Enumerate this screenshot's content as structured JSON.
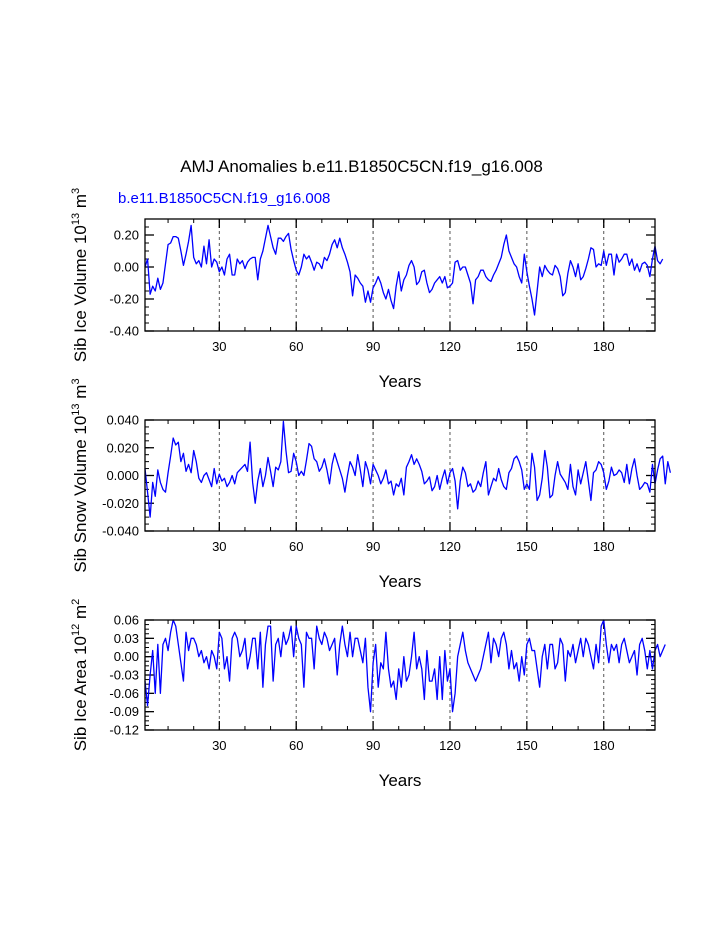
{
  "page": {
    "title": "AMJ Anomalies b.e11.B1850C5CN.f19_g16.008",
    "case_label": "b.e11.B1850C5CN.f19_g16.008"
  },
  "colors": {
    "series": "#0000ff",
    "axis": "#000000",
    "grid": "#555555",
    "case_label": "#0000ff"
  },
  "chart_data": [
    {
      "type": "line",
      "name": "ice-volume",
      "title": "",
      "xlabel": "Years",
      "ylabel_text": "Sib Ice Volume 10",
      "ylabel_exp": "13",
      "ylabel_unit": " m",
      "ylabel_unit_exp": "3",
      "xlim": [
        1,
        200
      ],
      "ylim": [
        -0.4,
        0.3
      ],
      "xticks": [
        30,
        60,
        90,
        120,
        150,
        180
      ],
      "xtick_labels": [
        "30",
        "60",
        "90",
        "120",
        "150",
        "180"
      ],
      "yticks": [
        -0.4,
        -0.2,
        0.0,
        0.2
      ],
      "ytick_labels": [
        "-0.40",
        "-0.20",
        "0.00",
        "0.20"
      ],
      "grid_x": true,
      "series": [
        {
          "name": "b.e11.B1850C5CN.f19_g16.008",
          "x_start": 1,
          "values": [
            0.0,
            0.05,
            -0.17,
            -0.12,
            -0.15,
            -0.07,
            -0.14,
            -0.1,
            0.02,
            0.14,
            0.15,
            0.19,
            0.19,
            0.18,
            0.1,
            0.01,
            0.08,
            0.16,
            0.26,
            0.06,
            0.02,
            0.04,
            0.0,
            0.13,
            0.02,
            0.17,
            0.0,
            0.05,
            0.03,
            -0.03,
            0.0,
            -0.05,
            0.05,
            0.08,
            -0.05,
            -0.05,
            0.05,
            0.02,
            0.04,
            -0.01,
            0.03,
            0.05,
            0.06,
            0.06,
            -0.08,
            0.05,
            0.1,
            0.18,
            0.26,
            0.19,
            0.12,
            0.08,
            0.18,
            0.18,
            0.16,
            0.19,
            0.21,
            0.11,
            0.04,
            -0.02,
            -0.05,
            0.0,
            0.08,
            0.05,
            0.07,
            0.03,
            -0.02,
            0.03,
            0.02,
            -0.01,
            0.06,
            0.04,
            0.08,
            0.14,
            0.17,
            0.12,
            0.18,
            0.12,
            0.08,
            0.03,
            -0.03,
            -0.18,
            -0.05,
            -0.07,
            -0.1,
            -0.12,
            -0.22,
            -0.15,
            -0.22,
            -0.13,
            -0.1,
            -0.06,
            -0.1,
            -0.16,
            -0.2,
            -0.14,
            -0.21,
            -0.26,
            -0.12,
            -0.03,
            -0.15,
            -0.08,
            -0.05,
            0.01,
            0.04,
            0.0,
            -0.11,
            -0.09,
            -0.03,
            -0.02,
            -0.1,
            -0.16,
            -0.14,
            -0.1,
            -0.08,
            -0.06,
            -0.1,
            -0.06,
            -0.13,
            -0.12,
            -0.1,
            0.03,
            0.04,
            -0.02,
            0.0,
            0.0,
            -0.05,
            -0.1,
            -0.23,
            -0.08,
            -0.06,
            -0.02,
            -0.02,
            -0.06,
            -0.08,
            -0.09,
            -0.05,
            -0.02,
            0.02,
            0.06,
            0.14,
            0.2,
            0.1,
            0.06,
            0.02,
            0.0,
            -0.06,
            -0.1,
            0.08,
            -0.03,
            -0.12,
            -0.2,
            -0.3,
            -0.15,
            0.0,
            -0.06,
            0.01,
            -0.02,
            -0.04,
            -0.05,
            0.01,
            -0.01,
            -0.06,
            -0.18,
            -0.16,
            -0.04,
            0.04,
            0.0,
            -0.06,
            0.02,
            -0.08,
            -0.06,
            -0.01,
            0.05,
            0.12,
            0.11,
            0.0,
            0.02,
            0.01,
            0.1,
            0.01,
            0.08,
            0.08,
            -0.05,
            0.08,
            0.03,
            0.05,
            0.08,
            0.08,
            0.01,
            0.05,
            -0.02,
            0.02,
            -0.03,
            0.02,
            0.03,
            0.01,
            -0.06,
            0.05,
            0.13,
            0.04,
            0.02,
            0.05
          ]
        }
      ]
    },
    {
      "type": "line",
      "name": "snow-volume",
      "title": "",
      "xlabel": "Years",
      "ylabel_text": "Sib Snow Volume 10",
      "ylabel_exp": "13",
      "ylabel_unit": " m",
      "ylabel_unit_exp": "3",
      "xlim": [
        1,
        200
      ],
      "ylim": [
        -0.04,
        0.04
      ],
      "xticks": [
        30,
        60,
        90,
        120,
        150,
        180
      ],
      "xtick_labels": [
        "30",
        "60",
        "90",
        "120",
        "150",
        "180"
      ],
      "yticks": [
        -0.04,
        -0.02,
        0.0,
        0.02,
        0.04
      ],
      "ytick_labels": [
        "-0.040",
        "-0.020",
        "0.000",
        "0.020",
        "0.040"
      ],
      "grid_x": true,
      "series": [
        {
          "name": "b.e11.B1850C5CN.f19_g16.008",
          "x_start": 1,
          "values": [
            0.005,
            -0.012,
            -0.03,
            -0.005,
            -0.015,
            0.004,
            -0.005,
            -0.01,
            -0.012,
            0.002,
            0.014,
            0.027,
            0.022,
            0.024,
            0.01,
            0.016,
            0.003,
            0.008,
            0.002,
            0.018,
            0.01,
            -0.002,
            -0.005,
            0.0,
            0.002,
            -0.003,
            -0.008,
            0.005,
            -0.006,
            0.001,
            -0.004,
            -0.002,
            -0.008,
            -0.005,
            0.0,
            -0.006,
            0.002,
            0.004,
            0.006,
            0.008,
            0.003,
            0.024,
            -0.005,
            -0.02,
            -0.004,
            0.005,
            -0.008,
            0.0,
            0.013,
            0.003,
            -0.008,
            0.006,
            0.004,
            0.01,
            0.039,
            0.018,
            0.002,
            0.003,
            0.016,
            0.01,
            0.0,
            0.003,
            0.0,
            0.011,
            0.023,
            0.021,
            0.012,
            0.01,
            0.003,
            0.006,
            0.012,
            0.004,
            -0.006,
            0.008,
            0.016,
            0.01,
            0.004,
            -0.002,
            -0.012,
            0.0,
            0.01,
            0.006,
            0.0,
            0.015,
            0.004,
            -0.008,
            0.01,
            0.004,
            -0.006,
            0.008,
            0.004,
            0.0,
            -0.006,
            -0.002,
            0.004,
            -0.006,
            -0.004,
            -0.014,
            -0.006,
            -0.008,
            -0.002,
            -0.014,
            0.006,
            0.01,
            0.015,
            0.008,
            0.012,
            0.008,
            0.003,
            -0.006,
            -0.004,
            -0.001,
            -0.011,
            -0.008,
            0.0,
            -0.01,
            -0.002,
            0.004,
            -0.006,
            0.002,
            0.005,
            -0.004,
            -0.024,
            -0.004,
            0.006,
            0.002,
            -0.008,
            -0.006,
            -0.012,
            -0.01,
            -0.004,
            -0.008,
            0.002,
            0.01,
            -0.014,
            -0.008,
            -0.002,
            -0.004,
            0.005,
            -0.003,
            -0.008,
            -0.01,
            0.002,
            0.005,
            0.012,
            0.014,
            0.01,
            0.004,
            -0.01,
            -0.006,
            -0.01,
            0.016,
            0.006,
            -0.018,
            -0.014,
            -0.002,
            0.018,
            0.006,
            -0.016,
            -0.014,
            0.0,
            0.01,
            0.001,
            -0.002,
            -0.005,
            -0.01,
            0.008,
            -0.008,
            -0.014,
            0.004,
            -0.006,
            0.002,
            0.01,
            -0.004,
            -0.018,
            0.002,
            0.004,
            0.01,
            0.008,
            0.002,
            -0.01,
            -0.004,
            0.006,
            0.0,
            0.001,
            0.004,
            0.002,
            -0.005,
            0.008,
            -0.006,
            0.005,
            0.012,
            0.0,
            -0.01,
            -0.008,
            -0.005,
            -0.006,
            -0.012,
            0.008,
            -0.006,
            0.004,
            0.012,
            0.014,
            -0.006,
            0.01,
            0.002
          ]
        }
      ]
    },
    {
      "type": "line",
      "name": "ice-area",
      "title": "",
      "xlabel": "Years",
      "ylabel_text": "Sib Ice Area 10",
      "ylabel_exp": "12",
      "ylabel_unit": " m",
      "ylabel_unit_exp": "2",
      "xlim": [
        1,
        200
      ],
      "ylim": [
        -0.12,
        0.06
      ],
      "xticks": [
        30,
        60,
        90,
        120,
        150,
        180
      ],
      "xtick_labels": [
        "30",
        "60",
        "90",
        "120",
        "150",
        "180"
      ],
      "yticks": [
        -0.12,
        -0.09,
        -0.06,
        -0.03,
        0.0,
        0.03,
        0.06
      ],
      "ytick_labels": [
        "-0.12",
        "-0.09",
        "-0.06",
        "-0.03",
        "0.00",
        "0.03",
        "0.06"
      ],
      "grid_x": true,
      "series": [
        {
          "name": "b.e11.B1850C5CN.f19_g16.008",
          "x_start": 1,
          "values": [
            -0.04,
            -0.08,
            -0.03,
            0.01,
            -0.06,
            0.02,
            -0.06,
            0.02,
            0.03,
            0.01,
            0.04,
            0.06,
            0.05,
            0.02,
            -0.01,
            -0.04,
            0.04,
            0.01,
            0.03,
            0.03,
            0.02,
            0.0,
            0.01,
            -0.01,
            0.0,
            -0.02,
            0.01,
            0.0,
            -0.02,
            0.04,
            0.03,
            -0.02,
            0.0,
            -0.04,
            0.03,
            0.04,
            0.03,
            0.0,
            0.01,
            0.03,
            -0.02,
            0.0,
            0.03,
            0.03,
            -0.02,
            0.04,
            -0.05,
            0.02,
            0.05,
            0.05,
            -0.04,
            0.02,
            0.03,
            0.0,
            0.04,
            0.02,
            0.03,
            0.05,
            0.0,
            0.05,
            0.03,
            0.02,
            -0.05,
            0.04,
            0.03,
            0.03,
            -0.02,
            0.05,
            0.03,
            0.02,
            0.04,
            0.03,
            0.01,
            0.02,
            0.03,
            -0.03,
            0.02,
            0.05,
            0.02,
            0.0,
            0.04,
            0.0,
            0.03,
            0.03,
            0.01,
            -0.01,
            0.03,
            -0.05,
            -0.09,
            -0.01,
            0.02,
            -0.05,
            -0.01,
            -0.02,
            0.04,
            -0.02,
            -0.05,
            -0.04,
            -0.07,
            -0.02,
            -0.05,
            0.0,
            -0.04,
            -0.03,
            0.0,
            0.04,
            -0.02,
            0.0,
            -0.02,
            -0.07,
            0.01,
            -0.04,
            -0.04,
            -0.02,
            -0.07,
            0.0,
            -0.07,
            0.01,
            -0.04,
            -0.02,
            -0.09,
            -0.06,
            0.0,
            0.02,
            0.04,
            0.01,
            -0.01,
            -0.02,
            -0.03,
            -0.04,
            -0.03,
            -0.02,
            0.0,
            0.02,
            0.04,
            -0.01,
            0.03,
            0.02,
            0.0,
            0.03,
            0.04,
            0.02,
            -0.02,
            0.01,
            -0.02,
            -0.01,
            -0.04,
            0.0,
            -0.03,
            0.02,
            0.03,
            0.01,
            0.01,
            -0.02,
            -0.05,
            0.0,
            0.02,
            -0.02,
            0.02,
            0.02,
            -0.02,
            -0.01,
            0.03,
            0.02,
            -0.04,
            0.01,
            0.0,
            0.02,
            -0.01,
            0.01,
            0.03,
            0.0,
            0.03,
            0.02,
            0.0,
            -0.02,
            0.02,
            -0.01,
            0.05,
            0.06,
            0.02,
            -0.01,
            0.02,
            0.01,
            0.02,
            -0.01,
            0.02,
            0.03,
            0.01,
            -0.01,
            0.0,
            0.01,
            -0.03,
            0.02,
            0.03,
            0.01,
            -0.02,
            0.01,
            -0.02,
            0.01,
            0.02,
            0.0,
            0.01,
            0.02
          ]
        }
      ]
    }
  ]
}
